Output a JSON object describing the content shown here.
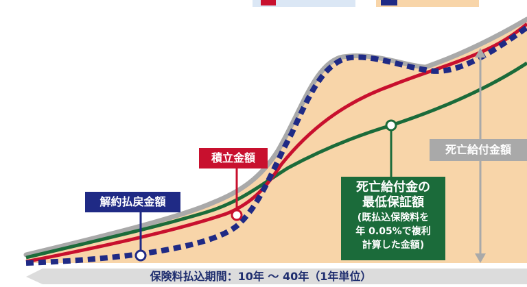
{
  "labels": {
    "sekiritsu": "積立金額",
    "kaiyaku": "解約払戻金額",
    "shibou": "死亡給付金額",
    "min_title_1": "死亡給付金の",
    "min_title_2": "最低保証額",
    "min_note_1": "(既払込保険料を",
    "min_note_2": "年 0.05%で複利",
    "min_note_3": "計算した金額)",
    "axis": "保険料払込期間：10年 ～ 40年（1年単位）"
  },
  "colors": {
    "accumulation": "#c8102e",
    "surrender": "#1f2a85",
    "minimum_guarantee": "#1b6b3a",
    "death_benefit_area": "#f8d5a9",
    "death_benefit_label": "#a9a9a9"
  }
}
